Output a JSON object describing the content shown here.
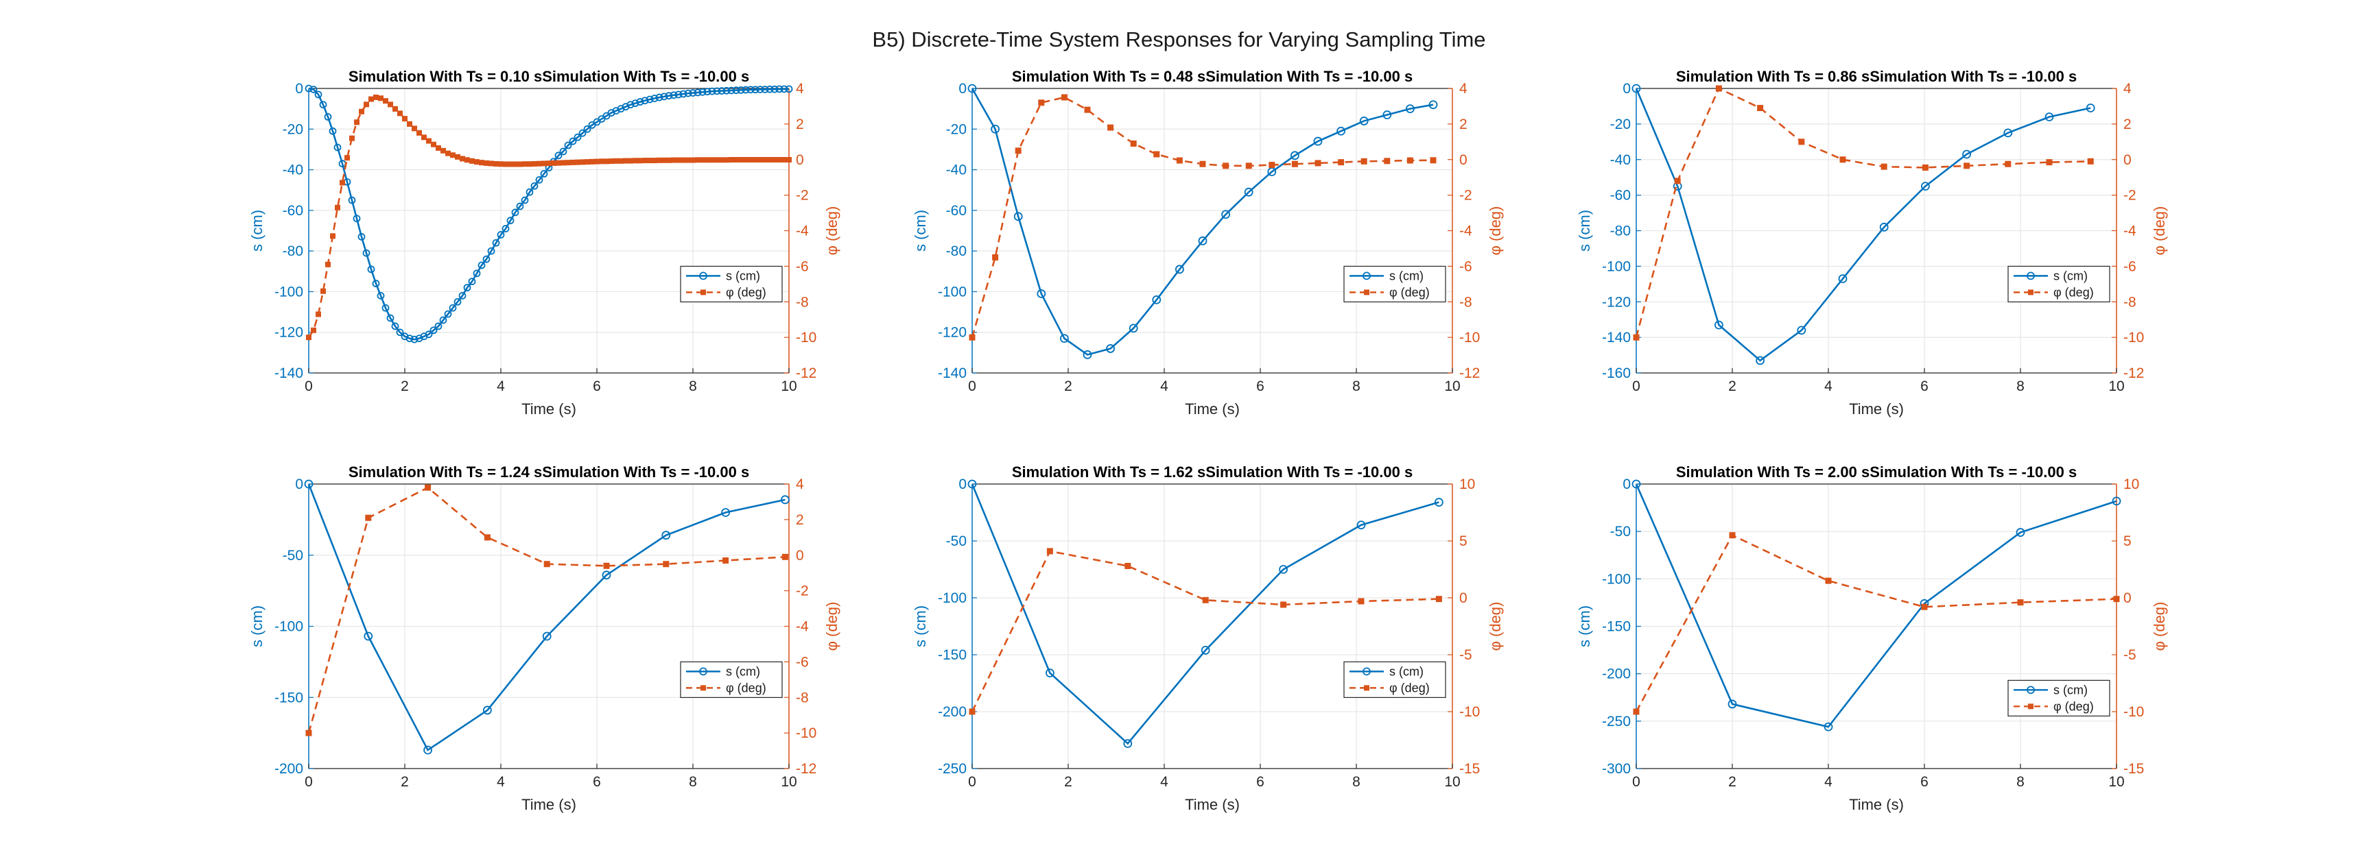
{
  "figure_title": "B5) Discrete-Time System Responses for Varying Sampling Time",
  "colors": {
    "s": "#0072BD",
    "phi": "#D95319",
    "axis": "#262626",
    "grid": "#e6e6e6"
  },
  "chart_data": [
    {
      "type": "line",
      "title": "Simulation With Ts = 0.10 sSimulation With Ts = -10.00 s",
      "xlabel": "Time (s)",
      "ylabel_left": "s (cm)",
      "ylabel_right": "φ (deg)",
      "xlim": [
        0,
        10
      ],
      "xticks": [
        0,
        2,
        4,
        6,
        8,
        10
      ],
      "ylim_left": [
        -140,
        0
      ],
      "yticks_left": [
        -140,
        -120,
        -100,
        -80,
        -60,
        -40,
        -20,
        0
      ],
      "ylim_right": [
        -12,
        4
      ],
      "yticks_right": [
        -12,
        -10,
        -8,
        -6,
        -4,
        -2,
        0,
        2,
        4
      ],
      "legend": [
        "s (cm)",
        "φ (deg)"
      ],
      "legend_position": "right-middle",
      "grid": true,
      "series": [
        {
          "name": "s (cm)",
          "axis": "left",
          "style": "solid-circle",
          "ts": 0.1,
          "x": [
            0,
            0.1,
            0.2,
            0.3,
            0.4,
            0.5,
            0.6,
            0.7,
            0.8,
            0.9,
            1.0,
            1.1,
            1.2,
            1.3,
            1.4,
            1.5,
            1.6,
            1.7,
            1.8,
            1.9,
            2.0,
            2.1,
            2.2,
            2.3,
            2.4,
            2.5,
            2.6,
            2.7,
            2.8,
            2.9,
            3.0,
            3.1,
            3.2,
            3.3,
            3.4,
            3.5,
            3.6,
            3.7,
            3.8,
            3.9,
            4.0,
            4.1,
            4.2,
            4.3,
            4.4,
            4.5,
            4.6,
            4.7,
            4.8,
            4.9,
            5.0,
            5.1,
            5.2,
            5.3,
            5.4,
            5.5,
            5.6,
            5.7,
            5.8,
            5.9,
            6.0,
            6.1,
            6.2,
            6.3,
            6.4,
            6.5,
            6.6,
            6.7,
            6.8,
            6.9,
            7.0,
            7.1,
            7.2,
            7.3,
            7.4,
            7.5,
            7.6,
            7.7,
            7.8,
            7.9,
            8.0,
            8.1,
            8.2,
            8.3,
            8.4,
            8.5,
            8.6,
            8.7,
            8.8,
            8.9,
            9.0,
            9.1,
            9.2,
            9.3,
            9.4,
            9.5,
            9.6,
            9.7,
            9.8,
            9.9,
            10.0
          ],
          "y": [
            0,
            -0.5,
            -3,
            -8,
            -14,
            -21,
            -29,
            -37,
            -46,
            -55,
            -64,
            -73,
            -81,
            -89,
            -96,
            -102,
            -108,
            -113,
            -117,
            -120,
            -122,
            -123,
            -123.5,
            -123,
            -122,
            -121,
            -119,
            -117,
            -114,
            -111,
            -108,
            -105,
            -102,
            -98,
            -95,
            -91,
            -87,
            -84,
            -80,
            -76,
            -72,
            -69,
            -65,
            -61,
            -58,
            -55,
            -51,
            -48,
            -45,
            -42,
            -39,
            -36,
            -33,
            -31,
            -28,
            -26,
            -24,
            -22,
            -20,
            -18,
            -16.5,
            -15,
            -13.5,
            -12,
            -11,
            -10,
            -9,
            -8,
            -7.3,
            -6.6,
            -6,
            -5.4,
            -4.9,
            -4.4,
            -4,
            -3.6,
            -3.3,
            -3,
            -2.7,
            -2.4,
            -2.2,
            -2,
            -1.8,
            -1.6,
            -1.4,
            -1.3,
            -1.2,
            -1.1,
            -1.0,
            -0.9,
            -0.8,
            -0.7,
            -0.6,
            -0.6,
            -0.5,
            -0.5,
            -0.4,
            -0.4,
            -0.3,
            -0.3,
            -0.3
          ]
        },
        {
          "name": "φ (deg)",
          "axis": "right",
          "style": "dashed-square",
          "x": [
            0,
            0.1,
            0.2,
            0.3,
            0.4,
            0.5,
            0.6,
            0.7,
            0.8,
            0.9,
            1.0,
            1.1,
            1.2,
            1.3,
            1.4,
            1.5,
            1.6,
            1.7,
            1.8,
            1.9,
            2.0,
            2.1,
            2.2,
            2.3,
            2.4,
            2.5,
            2.6,
            2.7,
            2.8,
            2.9,
            3.0,
            3.1,
            3.2,
            3.3,
            3.4,
            3.5,
            3.6,
            3.7,
            3.8,
            3.9,
            4.0,
            4.1,
            4.2,
            4.3,
            4.4,
            4.5,
            4.6,
            4.7,
            4.8,
            4.9,
            5.0,
            5.1,
            5.2,
            5.3,
            5.4,
            5.5,
            5.6,
            5.7,
            5.8,
            5.9,
            6.0,
            6.1,
            6.2,
            6.3,
            6.4,
            6.5,
            6.6,
            6.7,
            6.8,
            6.9,
            7.0,
            7.1,
            7.2,
            7.3,
            7.4,
            7.5,
            7.6,
            7.7,
            7.8,
            7.9,
            8.0,
            8.1,
            8.2,
            8.3,
            8.4,
            8.5,
            8.6,
            8.7,
            8.8,
            8.9,
            9.0,
            9.1,
            9.2,
            9.3,
            9.4,
            9.5,
            9.6,
            9.7,
            9.8,
            9.9,
            10.0
          ],
          "y": [
            -10,
            -9.6,
            -8.7,
            -7.4,
            -5.9,
            -4.3,
            -2.7,
            -1.3,
            0.1,
            1.2,
            2.1,
            2.7,
            3.1,
            3.4,
            3.5,
            3.45,
            3.3,
            3.1,
            2.85,
            2.6,
            2.3,
            2.0,
            1.75,
            1.5,
            1.25,
            1.05,
            0.85,
            0.65,
            0.5,
            0.35,
            0.25,
            0.15,
            0.05,
            -0.02,
            -0.08,
            -0.13,
            -0.17,
            -0.2,
            -0.22,
            -0.24,
            -0.25,
            -0.26,
            -0.26,
            -0.26,
            -0.26,
            -0.25,
            -0.25,
            -0.24,
            -0.23,
            -0.22,
            -0.21,
            -0.2,
            -0.19,
            -0.18,
            -0.17,
            -0.16,
            -0.15,
            -0.14,
            -0.13,
            -0.12,
            -0.11,
            -0.1,
            -0.1,
            -0.09,
            -0.08,
            -0.08,
            -0.07,
            -0.07,
            -0.06,
            -0.06,
            -0.05,
            -0.05,
            -0.05,
            -0.04,
            -0.04,
            -0.04,
            -0.03,
            -0.03,
            -0.03,
            -0.03,
            -0.03,
            -0.02,
            -0.02,
            -0.02,
            -0.02,
            -0.02,
            -0.02,
            -0.02,
            -0.01,
            -0.01,
            -0.01,
            -0.01,
            -0.01,
            -0.01,
            -0.01,
            -0.01,
            -0.01,
            -0.01,
            -0.01,
            -0.01,
            -0.01
          ]
        }
      ]
    },
    {
      "type": "line",
      "title": "Simulation With Ts = 0.48 sSimulation With Ts = -10.00 s",
      "xlabel": "Time (s)",
      "ylabel_left": "s (cm)",
      "ylabel_right": "φ (deg)",
      "xlim": [
        0,
        10
      ],
      "xticks": [
        0,
        2,
        4,
        6,
        8,
        10
      ],
      "ylim_left": [
        -140,
        0
      ],
      "yticks_left": [
        -140,
        -120,
        -100,
        -80,
        -60,
        -40,
        -20,
        0
      ],
      "ylim_right": [
        -12,
        4
      ],
      "yticks_right": [
        -12,
        -10,
        -8,
        -6,
        -4,
        -2,
        0,
        2,
        4
      ],
      "legend": [
        "s (cm)",
        "φ (deg)"
      ],
      "legend_position": "right-middle",
      "grid": true,
      "series": [
        {
          "name": "s (cm)",
          "axis": "left",
          "style": "solid-circle",
          "x": [
            0,
            0.48,
            0.96,
            1.44,
            1.92,
            2.4,
            2.88,
            3.36,
            3.84,
            4.32,
            4.8,
            5.28,
            5.76,
            6.24,
            6.72,
            7.2,
            7.68,
            8.16,
            8.64,
            9.12,
            9.6
          ],
          "y": [
            0,
            -20,
            -63,
            -101,
            -123,
            -131,
            -128,
            -118,
            -104,
            -89,
            -75,
            -62,
            -51,
            -41,
            -33,
            -26,
            -21,
            -16,
            -13,
            -10,
            -8
          ]
        },
        {
          "name": "φ (deg)",
          "axis": "right",
          "style": "dashed-square",
          "x": [
            0,
            0.48,
            0.96,
            1.44,
            1.92,
            2.4,
            2.88,
            3.36,
            3.84,
            4.32,
            4.8,
            5.28,
            5.76,
            6.24,
            6.72,
            7.2,
            7.68,
            8.16,
            8.64,
            9.12,
            9.6
          ],
          "y": [
            -10,
            -5.5,
            0.5,
            3.2,
            3.5,
            2.8,
            1.8,
            0.9,
            0.3,
            -0.05,
            -0.25,
            -0.35,
            -0.35,
            -0.3,
            -0.25,
            -0.2,
            -0.15,
            -0.1,
            -0.08,
            -0.05,
            -0.04
          ]
        }
      ]
    },
    {
      "type": "line",
      "title": "Simulation With Ts = 0.86 sSimulation With Ts = -10.00 s",
      "xlabel": "Time (s)",
      "ylabel_left": "s (cm)",
      "ylabel_right": "φ (deg)",
      "xlim": [
        0,
        10
      ],
      "xticks": [
        0,
        2,
        4,
        6,
        8,
        10
      ],
      "ylim_left": [
        -160,
        0
      ],
      "yticks_left": [
        -160,
        -140,
        -120,
        -100,
        -80,
        -60,
        -40,
        -20,
        0
      ],
      "ylim_right": [
        -12,
        4
      ],
      "yticks_right": [
        -12,
        -10,
        -8,
        -6,
        -4,
        -2,
        0,
        2,
        4
      ],
      "legend": [
        "s (cm)",
        "φ (deg)"
      ],
      "legend_position": "right-middle",
      "grid": true,
      "series": [
        {
          "name": "s (cm)",
          "axis": "left",
          "style": "solid-circle",
          "x": [
            0,
            0.86,
            1.72,
            2.58,
            3.44,
            4.3,
            5.16,
            6.02,
            6.88,
            7.74,
            8.6,
            9.46
          ],
          "y": [
            0,
            -55,
            -133,
            -153,
            -136,
            -107,
            -78,
            -55,
            -37,
            -25,
            -16,
            -11
          ]
        },
        {
          "name": "φ (deg)",
          "axis": "right",
          "style": "dashed-square",
          "x": [
            0,
            0.86,
            1.72,
            2.58,
            3.44,
            4.3,
            5.16,
            6.02,
            6.88,
            7.74,
            8.6,
            9.46
          ],
          "y": [
            -10,
            -1.2,
            4,
            2.9,
            1.0,
            0.0,
            -0.4,
            -0.45,
            -0.35,
            -0.25,
            -0.15,
            -0.1
          ]
        }
      ]
    },
    {
      "type": "line",
      "title": "Simulation With Ts = 1.24 sSimulation With Ts = -10.00 s",
      "xlabel": "Time (s)",
      "ylabel_left": "s (cm)",
      "ylabel_right": "φ (deg)",
      "xlim": [
        0,
        10
      ],
      "xticks": [
        0,
        2,
        4,
        6,
        8,
        10
      ],
      "ylim_left": [
        -200,
        0
      ],
      "yticks_left": [
        -200,
        -150,
        -100,
        -50,
        0
      ],
      "ylim_right": [
        -12,
        4
      ],
      "yticks_right": [
        -12,
        -10,
        -8,
        -6,
        -4,
        -2,
        0,
        2,
        4
      ],
      "legend": [
        "s (cm)",
        "φ (deg)"
      ],
      "legend_position": "right-middle",
      "grid": true,
      "series": [
        {
          "name": "s (cm)",
          "axis": "left",
          "style": "solid-circle",
          "x": [
            0,
            1.24,
            2.48,
            3.72,
            4.96,
            6.2,
            7.44,
            8.68,
            9.92
          ],
          "y": [
            0,
            -107,
            -187,
            -159,
            -107,
            -64,
            -36,
            -20,
            -11
          ]
        },
        {
          "name": "φ (deg)",
          "axis": "right",
          "style": "dashed-square",
          "x": [
            0,
            1.24,
            2.48,
            3.72,
            4.96,
            6.2,
            7.44,
            8.68,
            9.92
          ],
          "y": [
            -10,
            2.1,
            3.8,
            1.0,
            -0.5,
            -0.6,
            -0.5,
            -0.3,
            -0.1
          ]
        }
      ]
    },
    {
      "type": "line",
      "title": "Simulation With Ts = 1.62 sSimulation With Ts = -10.00 s",
      "xlabel": "Time (s)",
      "ylabel_left": "s (cm)",
      "ylabel_right": "φ (deg)",
      "xlim": [
        0,
        10
      ],
      "xticks": [
        0,
        2,
        4,
        6,
        8,
        10
      ],
      "ylim_left": [
        -250,
        0
      ],
      "yticks_left": [
        -250,
        -200,
        -150,
        -100,
        -50,
        0
      ],
      "ylim_right": [
        -15,
        10
      ],
      "yticks_right": [
        -15,
        -10,
        -5,
        0,
        5,
        10
      ],
      "legend": [
        "s (cm)",
        "φ (deg)"
      ],
      "legend_position": "right-middle",
      "grid": true,
      "series": [
        {
          "name": "s (cm)",
          "axis": "left",
          "style": "solid-circle",
          "x": [
            0,
            1.62,
            3.24,
            4.86,
            6.48,
            8.1,
            9.72
          ],
          "y": [
            0,
            -166,
            -228,
            -146,
            -75,
            -36,
            -16
          ]
        },
        {
          "name": "φ (deg)",
          "axis": "right",
          "style": "dashed-square",
          "x": [
            0,
            1.62,
            3.24,
            4.86,
            6.48,
            8.1,
            9.72
          ],
          "y": [
            -10,
            4.1,
            2.8,
            -0.2,
            -0.6,
            -0.3,
            -0.1
          ]
        }
      ]
    },
    {
      "type": "line",
      "title": "Simulation With Ts = 2.00 sSimulation With Ts = -10.00 s",
      "xlabel": "Time (s)",
      "ylabel_left": "s (cm)",
      "ylabel_right": "φ (deg)",
      "xlim": [
        0,
        10
      ],
      "xticks": [
        0,
        2,
        4,
        6,
        8,
        10
      ],
      "ylim_left": [
        -300,
        0
      ],
      "yticks_left": [
        -300,
        -250,
        -200,
        -150,
        -100,
        -50,
        0
      ],
      "ylim_right": [
        -15,
        10
      ],
      "yticks_right": [
        -15,
        -10,
        -5,
        0,
        5,
        10
      ],
      "legend": [
        "s (cm)",
        "φ (deg)"
      ],
      "legend_position": "right-lower",
      "grid": true,
      "series": [
        {
          "name": "s (cm)",
          "axis": "left",
          "style": "solid-circle",
          "x": [
            0,
            2,
            4,
            6,
            8,
            10
          ],
          "y": [
            0,
            -232,
            -256,
            -126,
            -51,
            -18
          ]
        },
        {
          "name": "φ (deg)",
          "axis": "right",
          "style": "dashed-square",
          "x": [
            0,
            2,
            4,
            6,
            8,
            10
          ],
          "y": [
            -10,
            5.5,
            1.5,
            -0.8,
            -0.4,
            -0.1
          ]
        }
      ]
    }
  ]
}
